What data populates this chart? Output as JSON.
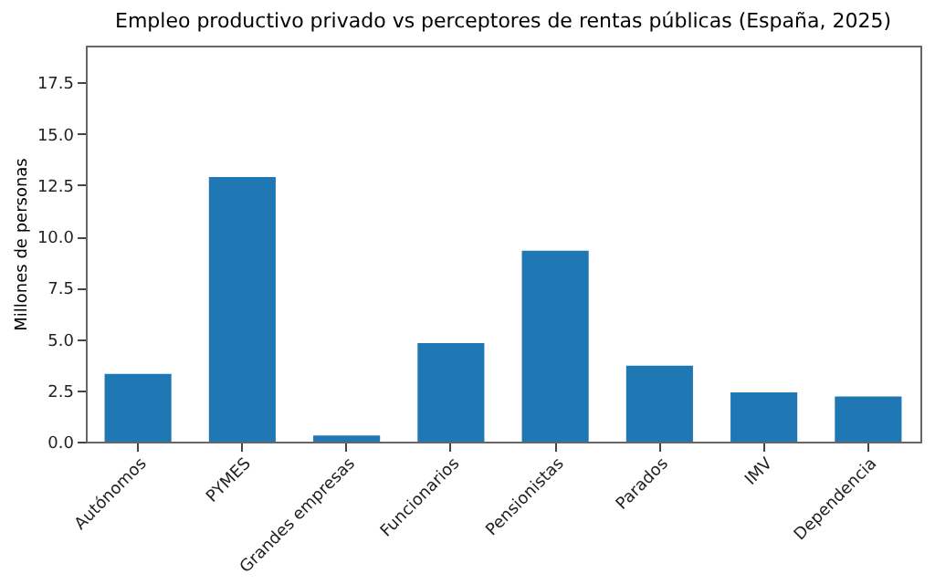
{
  "chart_data": {
    "type": "bar",
    "title": "Empleo productivo privado vs perceptores de rentas públicas (España, 2025)",
    "ylabel": "Millones de personas",
    "categories": [
      "Autónomos",
      "PYMES",
      "Grandes empresas",
      "Funcionarios",
      "Pensionistas",
      "Parados",
      "IMV",
      "Dependencia"
    ],
    "values": [
      3.3,
      12.9,
      0.3,
      4.8,
      9.3,
      3.7,
      2.4,
      2.2
    ],
    "color": "#1f77b4",
    "ylim": [
      0,
      19.3
    ],
    "yticks": [
      {
        "value": 0,
        "label": "0.0"
      },
      2.5,
      {
        "value": 5,
        "label": "5.0"
      },
      7.5,
      {
        "value": 10,
        "label": "10.0"
      },
      12.5,
      {
        "value": 15,
        "label": "15.0"
      },
      17.5
    ],
    "grid": false
  }
}
